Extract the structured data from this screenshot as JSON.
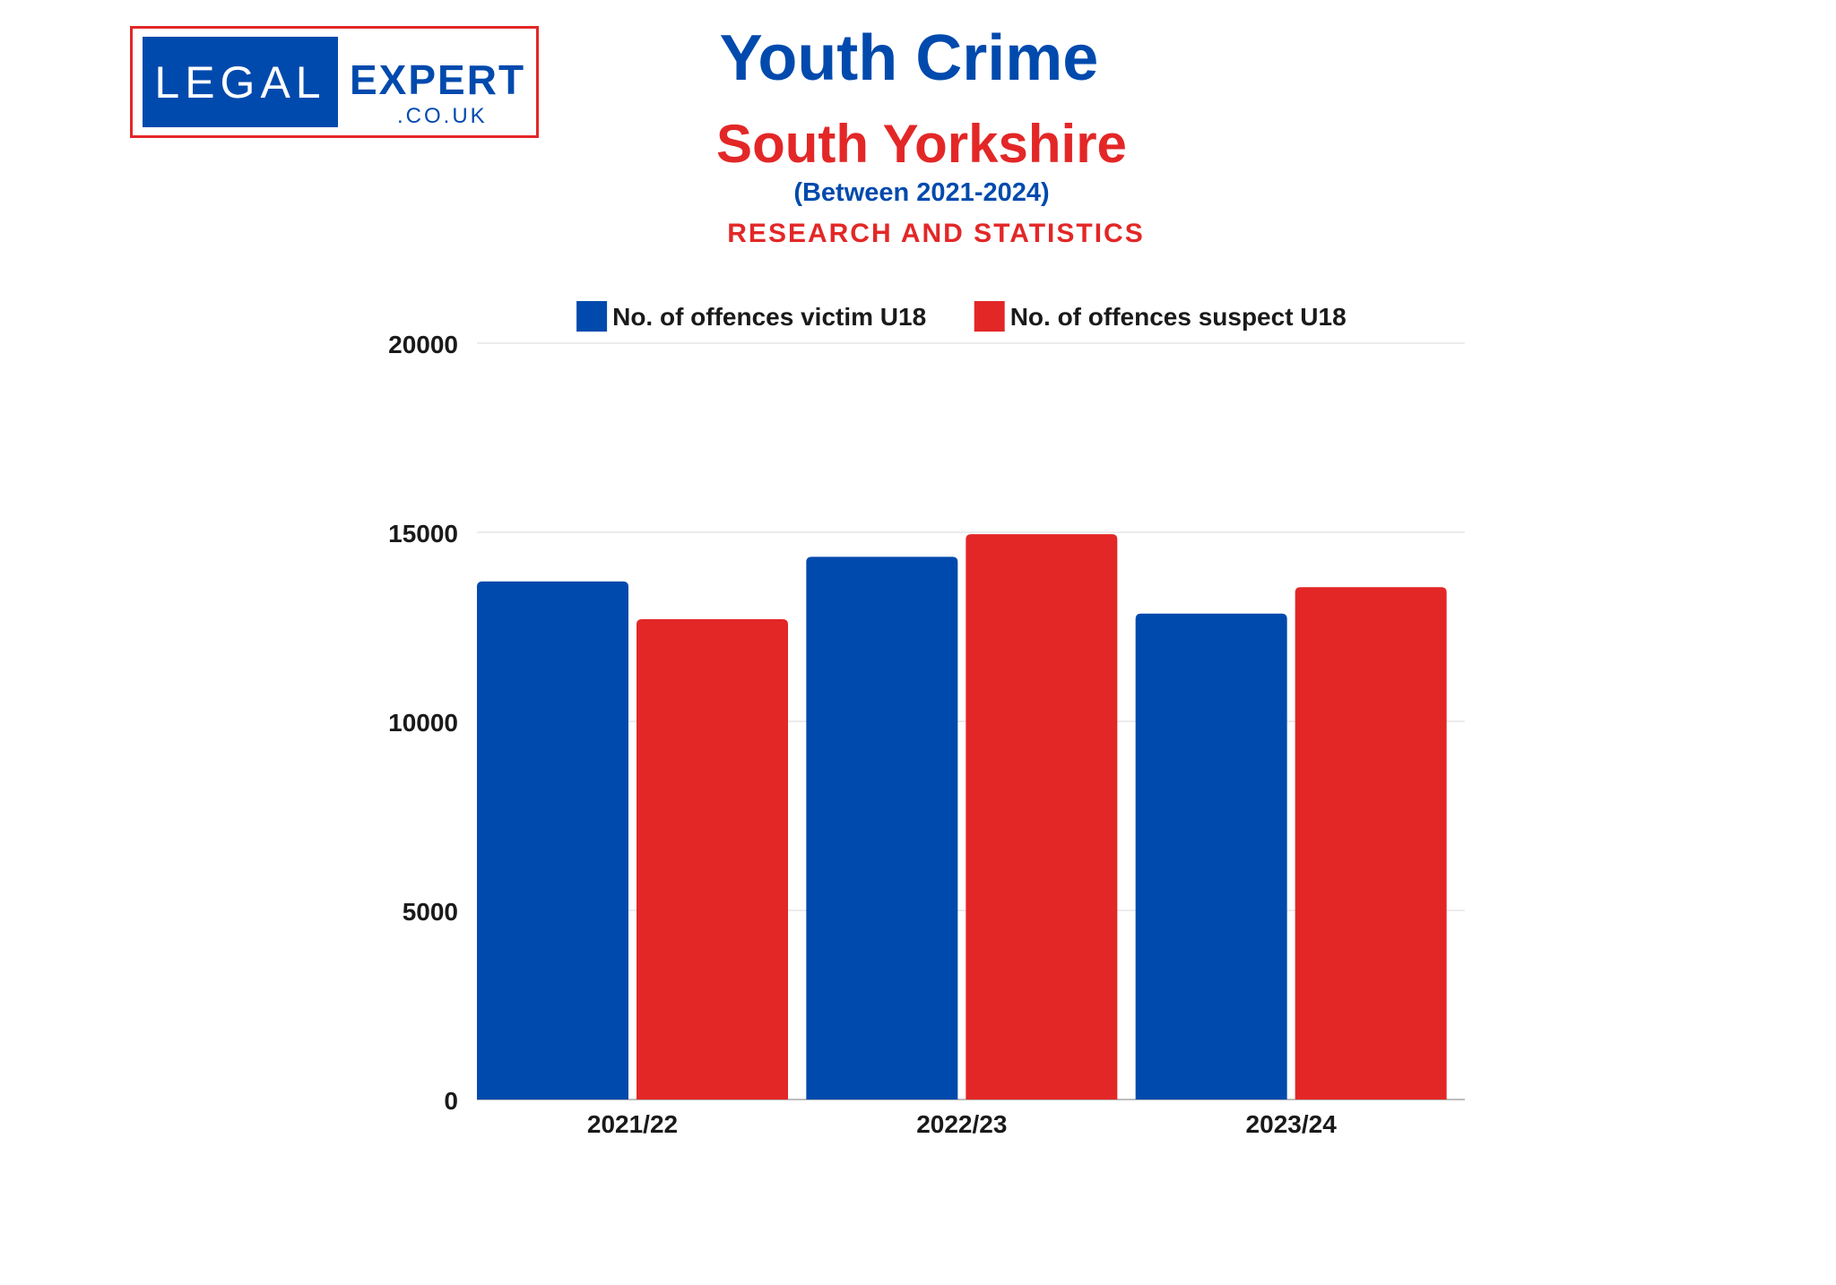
{
  "header": {
    "logo": {
      "text_main": "LEGAL",
      "text_brand": "EXPERT",
      "text_domain": ".CO.UK"
    },
    "title": "Youth Crime",
    "subtitle": "South Yorkshire",
    "period": "(Between 2021-2024)",
    "tagline": "RESEARCH AND STATISTICS"
  },
  "colors": {
    "victim": "#014aad",
    "suspect": "#e32727",
    "grid": "#e6e6e6"
  },
  "chart_data": {
    "type": "bar",
    "categories": [
      "2021/22",
      "2022/23",
      "2023/24"
    ],
    "series": [
      {
        "name": "No. of offences victim U18",
        "values": [
          13700,
          14350,
          12850
        ]
      },
      {
        "name": "No. of offences suspect U18",
        "values": [
          12700,
          14950,
          13550
        ]
      }
    ],
    "ylim": [
      0,
      20000
    ],
    "yticks": [
      0,
      5000,
      10000,
      15000,
      20000
    ],
    "legend": "top-center",
    "grid": true
  }
}
